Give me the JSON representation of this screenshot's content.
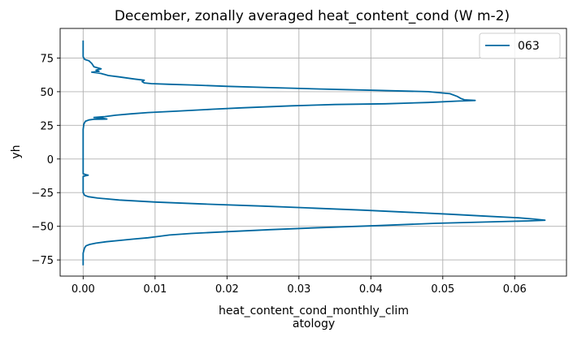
{
  "chart_data": {
    "type": "line",
    "title": "December, zonally averaged heat_content_cond (W m-2)",
    "xlabel_line1": "heat_content_cond_monthly_clim",
    "xlabel_line2": "atology",
    "ylabel": "yh",
    "xlim": [
      -0.0032,
      0.0672
    ],
    "ylim": [
      -87,
      97
    ],
    "grid": true,
    "legend_position": "top-right",
    "x_ticks": [
      {
        "value": 0.0,
        "label": "0.00"
      },
      {
        "value": 0.01,
        "label": "0.01"
      },
      {
        "value": 0.02,
        "label": "0.02"
      },
      {
        "value": 0.03,
        "label": "0.03"
      },
      {
        "value": 0.04,
        "label": "0.04"
      },
      {
        "value": 0.05,
        "label": "0.05"
      },
      {
        "value": 0.06,
        "label": "0.06"
      }
    ],
    "y_ticks": [
      {
        "value": 75,
        "label": "75"
      },
      {
        "value": 50,
        "label": "50"
      },
      {
        "value": 25,
        "label": "25"
      },
      {
        "value": 0,
        "label": "0"
      },
      {
        "value": -25,
        "label": "−25"
      },
      {
        "value": -50,
        "label": "−50"
      },
      {
        "value": -75,
        "label": "−75"
      }
    ],
    "series": [
      {
        "name": "063",
        "color": "#0068a0",
        "points": [
          [
            0.0,
            88
          ],
          [
            0.0,
            80
          ],
          [
            0.0,
            76
          ],
          [
            0.0002,
            74
          ],
          [
            0.0008,
            73
          ],
          [
            0.0012,
            71
          ],
          [
            0.0015,
            68.5
          ],
          [
            0.0025,
            67
          ],
          [
            0.0018,
            66
          ],
          [
            0.0022,
            65
          ],
          [
            0.0012,
            64.5
          ],
          [
            0.0025,
            63.5
          ],
          [
            0.0035,
            62
          ],
          [
            0.005,
            61
          ],
          [
            0.007,
            59.5
          ],
          [
            0.0085,
            58.5
          ],
          [
            0.0082,
            57.5
          ],
          [
            0.0085,
            56.5
          ],
          [
            0.0095,
            56
          ],
          [
            0.012,
            55.5
          ],
          [
            0.015,
            55
          ],
          [
            0.02,
            54
          ],
          [
            0.026,
            53
          ],
          [
            0.033,
            52
          ],
          [
            0.041,
            51
          ],
          [
            0.048,
            50
          ],
          [
            0.051,
            48.5
          ],
          [
            0.052,
            46.5
          ],
          [
            0.0525,
            45
          ],
          [
            0.053,
            44
          ],
          [
            0.0545,
            43.5
          ],
          [
            0.052,
            43
          ],
          [
            0.048,
            42
          ],
          [
            0.042,
            41
          ],
          [
            0.035,
            40.5
          ],
          [
            0.029,
            39.5
          ],
          [
            0.022,
            38
          ],
          [
            0.018,
            37
          ],
          [
            0.013,
            35.5
          ],
          [
            0.009,
            34.5
          ],
          [
            0.0065,
            33.5
          ],
          [
            0.0045,
            32.5
          ],
          [
            0.003,
            31.5
          ],
          [
            0.0015,
            30.8
          ],
          [
            0.0028,
            30.2
          ],
          [
            0.0033,
            29.7
          ],
          [
            0.0015,
            29.5
          ],
          [
            0.0008,
            29
          ],
          [
            0.0003,
            28
          ],
          [
            0.0001,
            26
          ],
          [
            0.0,
            22
          ],
          [
            0.0,
            12
          ],
          [
            0.0,
            0
          ],
          [
            0.0,
            -11
          ],
          [
            0.0003,
            -11.5
          ],
          [
            0.0007,
            -12
          ],
          [
            0.0003,
            -12.5
          ],
          [
            0.0,
            -13
          ],
          [
            0.0,
            -20
          ],
          [
            0.0,
            -25
          ],
          [
            0.0002,
            -27
          ],
          [
            0.0007,
            -28
          ],
          [
            0.002,
            -29
          ],
          [
            0.005,
            -30.5
          ],
          [
            0.01,
            -32
          ],
          [
            0.017,
            -33.5
          ],
          [
            0.025,
            -35
          ],
          [
            0.032,
            -36.5
          ],
          [
            0.039,
            -38
          ],
          [
            0.045,
            -39.5
          ],
          [
            0.051,
            -41
          ],
          [
            0.056,
            -42.5
          ],
          [
            0.0605,
            -43.7
          ],
          [
            0.0625,
            -44.5
          ],
          [
            0.0642,
            -45.5
          ],
          [
            0.062,
            -46
          ],
          [
            0.056,
            -46.8
          ],
          [
            0.049,
            -47.8
          ],
          [
            0.041,
            -49.5
          ],
          [
            0.033,
            -51
          ],
          [
            0.026,
            -52.5
          ],
          [
            0.02,
            -54
          ],
          [
            0.015,
            -55.3
          ],
          [
            0.012,
            -56.5
          ],
          [
            0.0105,
            -57.5
          ],
          [
            0.009,
            -58.5
          ],
          [
            0.007,
            -59.5
          ],
          [
            0.005,
            -60.5
          ],
          [
            0.0032,
            -61.5
          ],
          [
            0.0018,
            -62.5
          ],
          [
            0.0009,
            -63.5
          ],
          [
            0.0004,
            -64.5
          ],
          [
            0.0002,
            -66
          ],
          [
            0.0,
            -70
          ],
          [
            0.0,
            -75
          ],
          [
            0.0,
            -79
          ]
        ]
      }
    ]
  }
}
